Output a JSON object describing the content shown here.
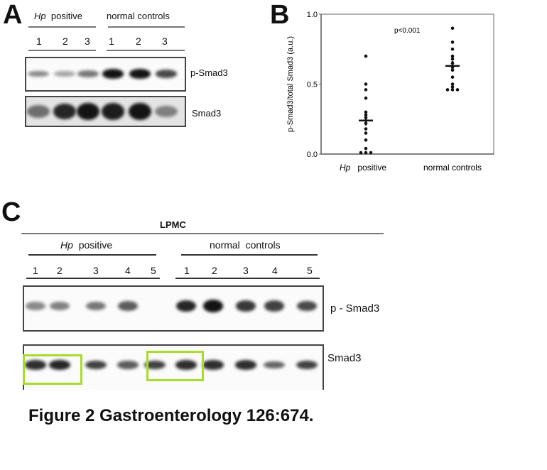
{
  "panel_a": {
    "letter": "A",
    "group1": "Hp",
    "group1_suffix": "positive",
    "group2": "normal controls",
    "lanes": [
      "1",
      "2",
      "3",
      "1",
      "2",
      "3"
    ],
    "row1_label": "p-Smad3",
    "row2_label": "Smad3",
    "row1_intensity": [
      0.35,
      0.2,
      0.45,
      1.0,
      1.0,
      0.7
    ],
    "row2_intensity": [
      0.5,
      0.9,
      1.0,
      0.95,
      1.0,
      0.4
    ]
  },
  "panel_b": {
    "letter": "B",
    "chart_data": {
      "type": "scatter",
      "ylabel": "p-Smad3/total Smad3 (a.u.)",
      "ylim": [
        0,
        1.0
      ],
      "yticks": [
        "0.0",
        "0.5",
        "1.0"
      ],
      "annotation": "p<0.001",
      "categories": [
        {
          "label_italic": "Hp",
          "label": "positive"
        },
        {
          "label": "normal controls"
        }
      ],
      "series": [
        {
          "values": [
            0.7,
            0.5,
            0.46,
            0.4,
            0.3,
            0.28,
            0.26,
            0.22,
            0.18,
            0.15,
            0.1,
            0.04,
            0.01,
            0.01,
            0.01
          ],
          "mean": 0.24
        },
        {
          "values": [
            0.9,
            0.8,
            0.75,
            0.7,
            0.68,
            0.65,
            0.62,
            0.6,
            0.55,
            0.5,
            0.48,
            0.46,
            0.46,
            0.46
          ],
          "mean": 0.63
        }
      ]
    }
  },
  "panel_c": {
    "letter": "C",
    "header": "LPMC",
    "group1": "Hp",
    "group1_suffix": "positive",
    "group2": "normal  controls",
    "lanes": [
      "1",
      "2",
      "3",
      "4",
      "5",
      "1",
      "2",
      "3",
      "4",
      "5"
    ],
    "row1_label": "p - Smad3",
    "row2_label": "Smad3",
    "row1_intensity": [
      0.35,
      0.4,
      0.45,
      0.6,
      0,
      0.9,
      1.0,
      0.8,
      0.75,
      0.7
    ],
    "row2_intensity": [
      0.85,
      0.9,
      0.75,
      0.6,
      0.75,
      0.85,
      0.85,
      0.85,
      0.55,
      0.75
    ],
    "highlight_color": "#a8dc2a"
  },
  "caption": "Figure 2 Gastroenterology 126:674."
}
